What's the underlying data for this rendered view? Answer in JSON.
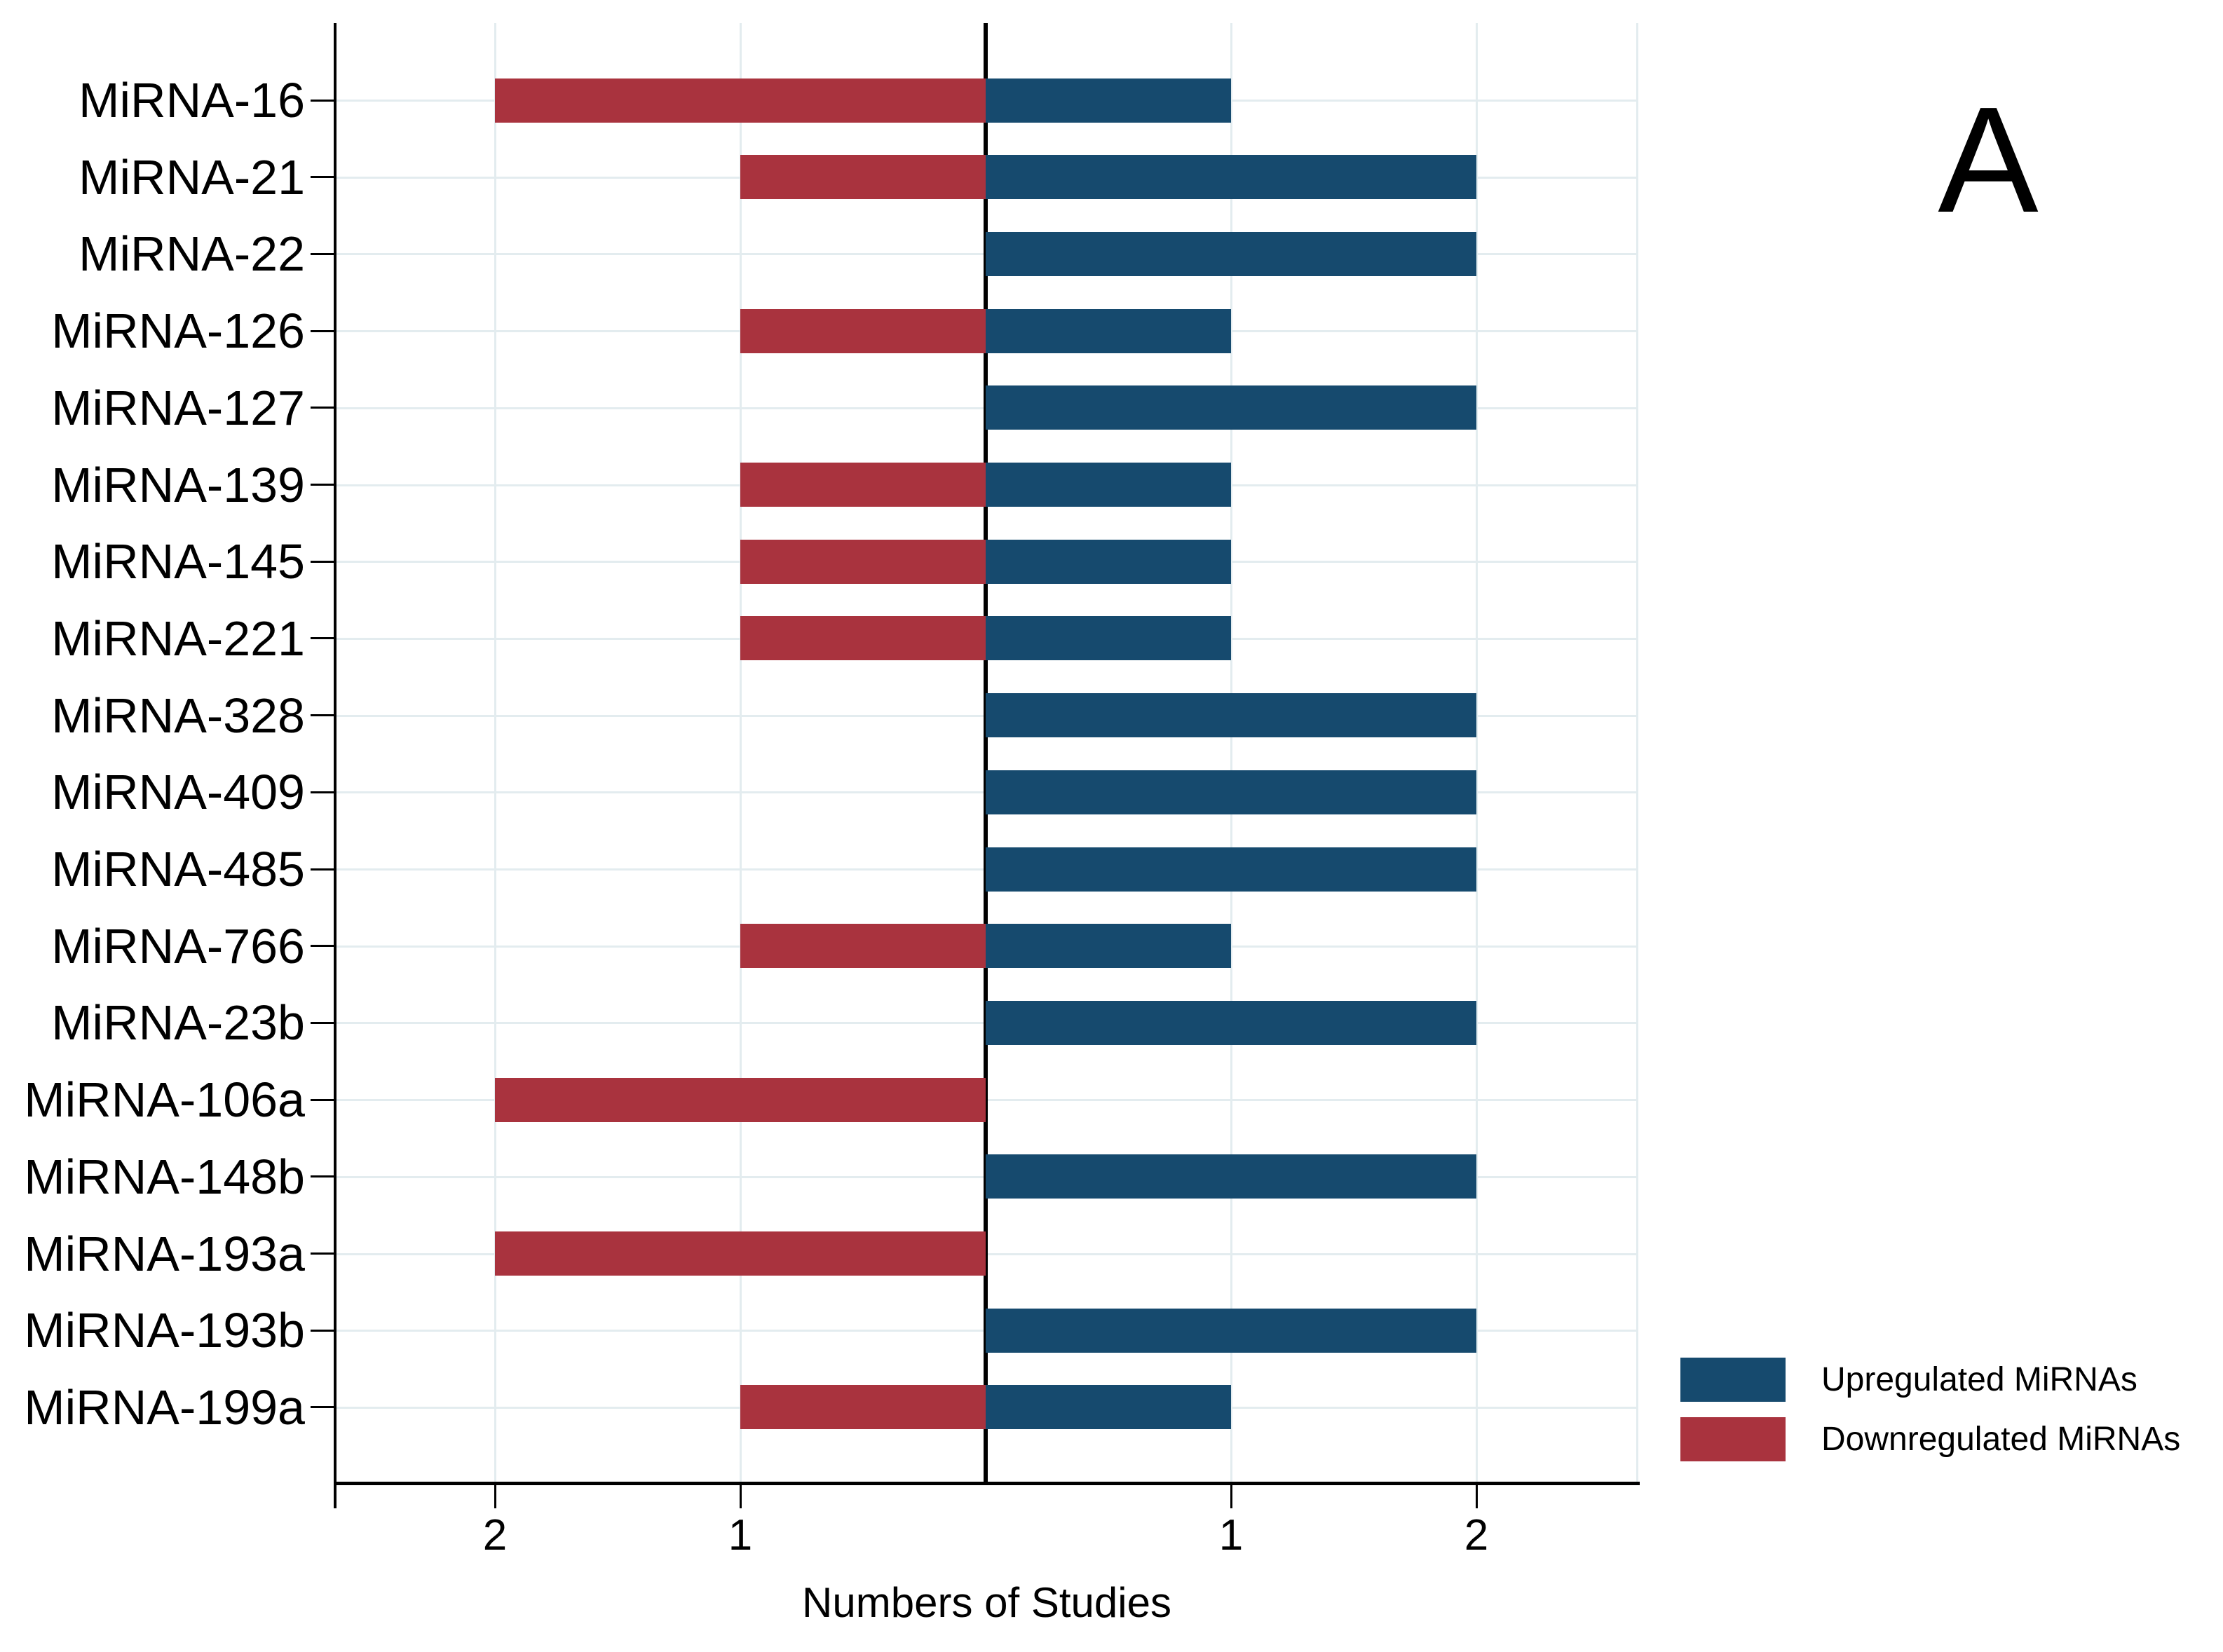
{
  "panel_label": "A",
  "axis": {
    "x_title": "Numbers of Studies"
  },
  "legend": {
    "items": [
      {
        "label": "Upregulated MiRNAs",
        "key": "up"
      },
      {
        "label": "Downregulated MiRNAs",
        "key": "down"
      }
    ],
    "position": "bottom-right"
  },
  "colors": {
    "up": "#164A6E",
    "down": "#A9333E",
    "grid": "#E3ECEF",
    "axis": "#000000",
    "text": "#000000",
    "background": "#FFFFFF"
  },
  "chart_data": {
    "type": "bar",
    "variant": "diverging-horizontal",
    "title": "",
    "xlabel": "Numbers of Studies",
    "ylabel": "",
    "categories": [
      "MiRNA-16",
      "MiRNA-21",
      "MiRNA-22",
      "MiRNA-126",
      "MiRNA-127",
      "MiRNA-139",
      "MiRNA-145",
      "MiRNA-221",
      "MiRNA-328",
      "MiRNA-409",
      "MiRNA-485",
      "MiRNA-766",
      "MiRNA-23b",
      "MiRNA-106a",
      "MiRNA-148b",
      "MiRNA-193a",
      "MiRNA-193b",
      "MiRNA-199a"
    ],
    "series": [
      {
        "name": "Upregulated MiRNAs",
        "side": "right",
        "color": "#164A6E",
        "values": [
          1,
          2,
          2,
          1,
          2,
          1,
          1,
          1,
          2,
          2,
          2,
          1,
          2,
          0,
          2,
          0,
          2,
          1
        ]
      },
      {
        "name": "Downregulated MiRNAs",
        "side": "left",
        "color": "#A9333E",
        "values": [
          2,
          1,
          0,
          1,
          0,
          1,
          1,
          1,
          0,
          0,
          0,
          1,
          0,
          2,
          0,
          2,
          0,
          1
        ]
      }
    ],
    "x_ticks": [
      {
        "value": -2,
        "label": "2"
      },
      {
        "value": -1,
        "label": "1"
      },
      {
        "value": 1,
        "label": "1"
      },
      {
        "value": 2,
        "label": "2"
      }
    ],
    "xlim": [
      -2.65,
      2.66
    ],
    "grid": true,
    "legend_position": "bottom-right"
  }
}
